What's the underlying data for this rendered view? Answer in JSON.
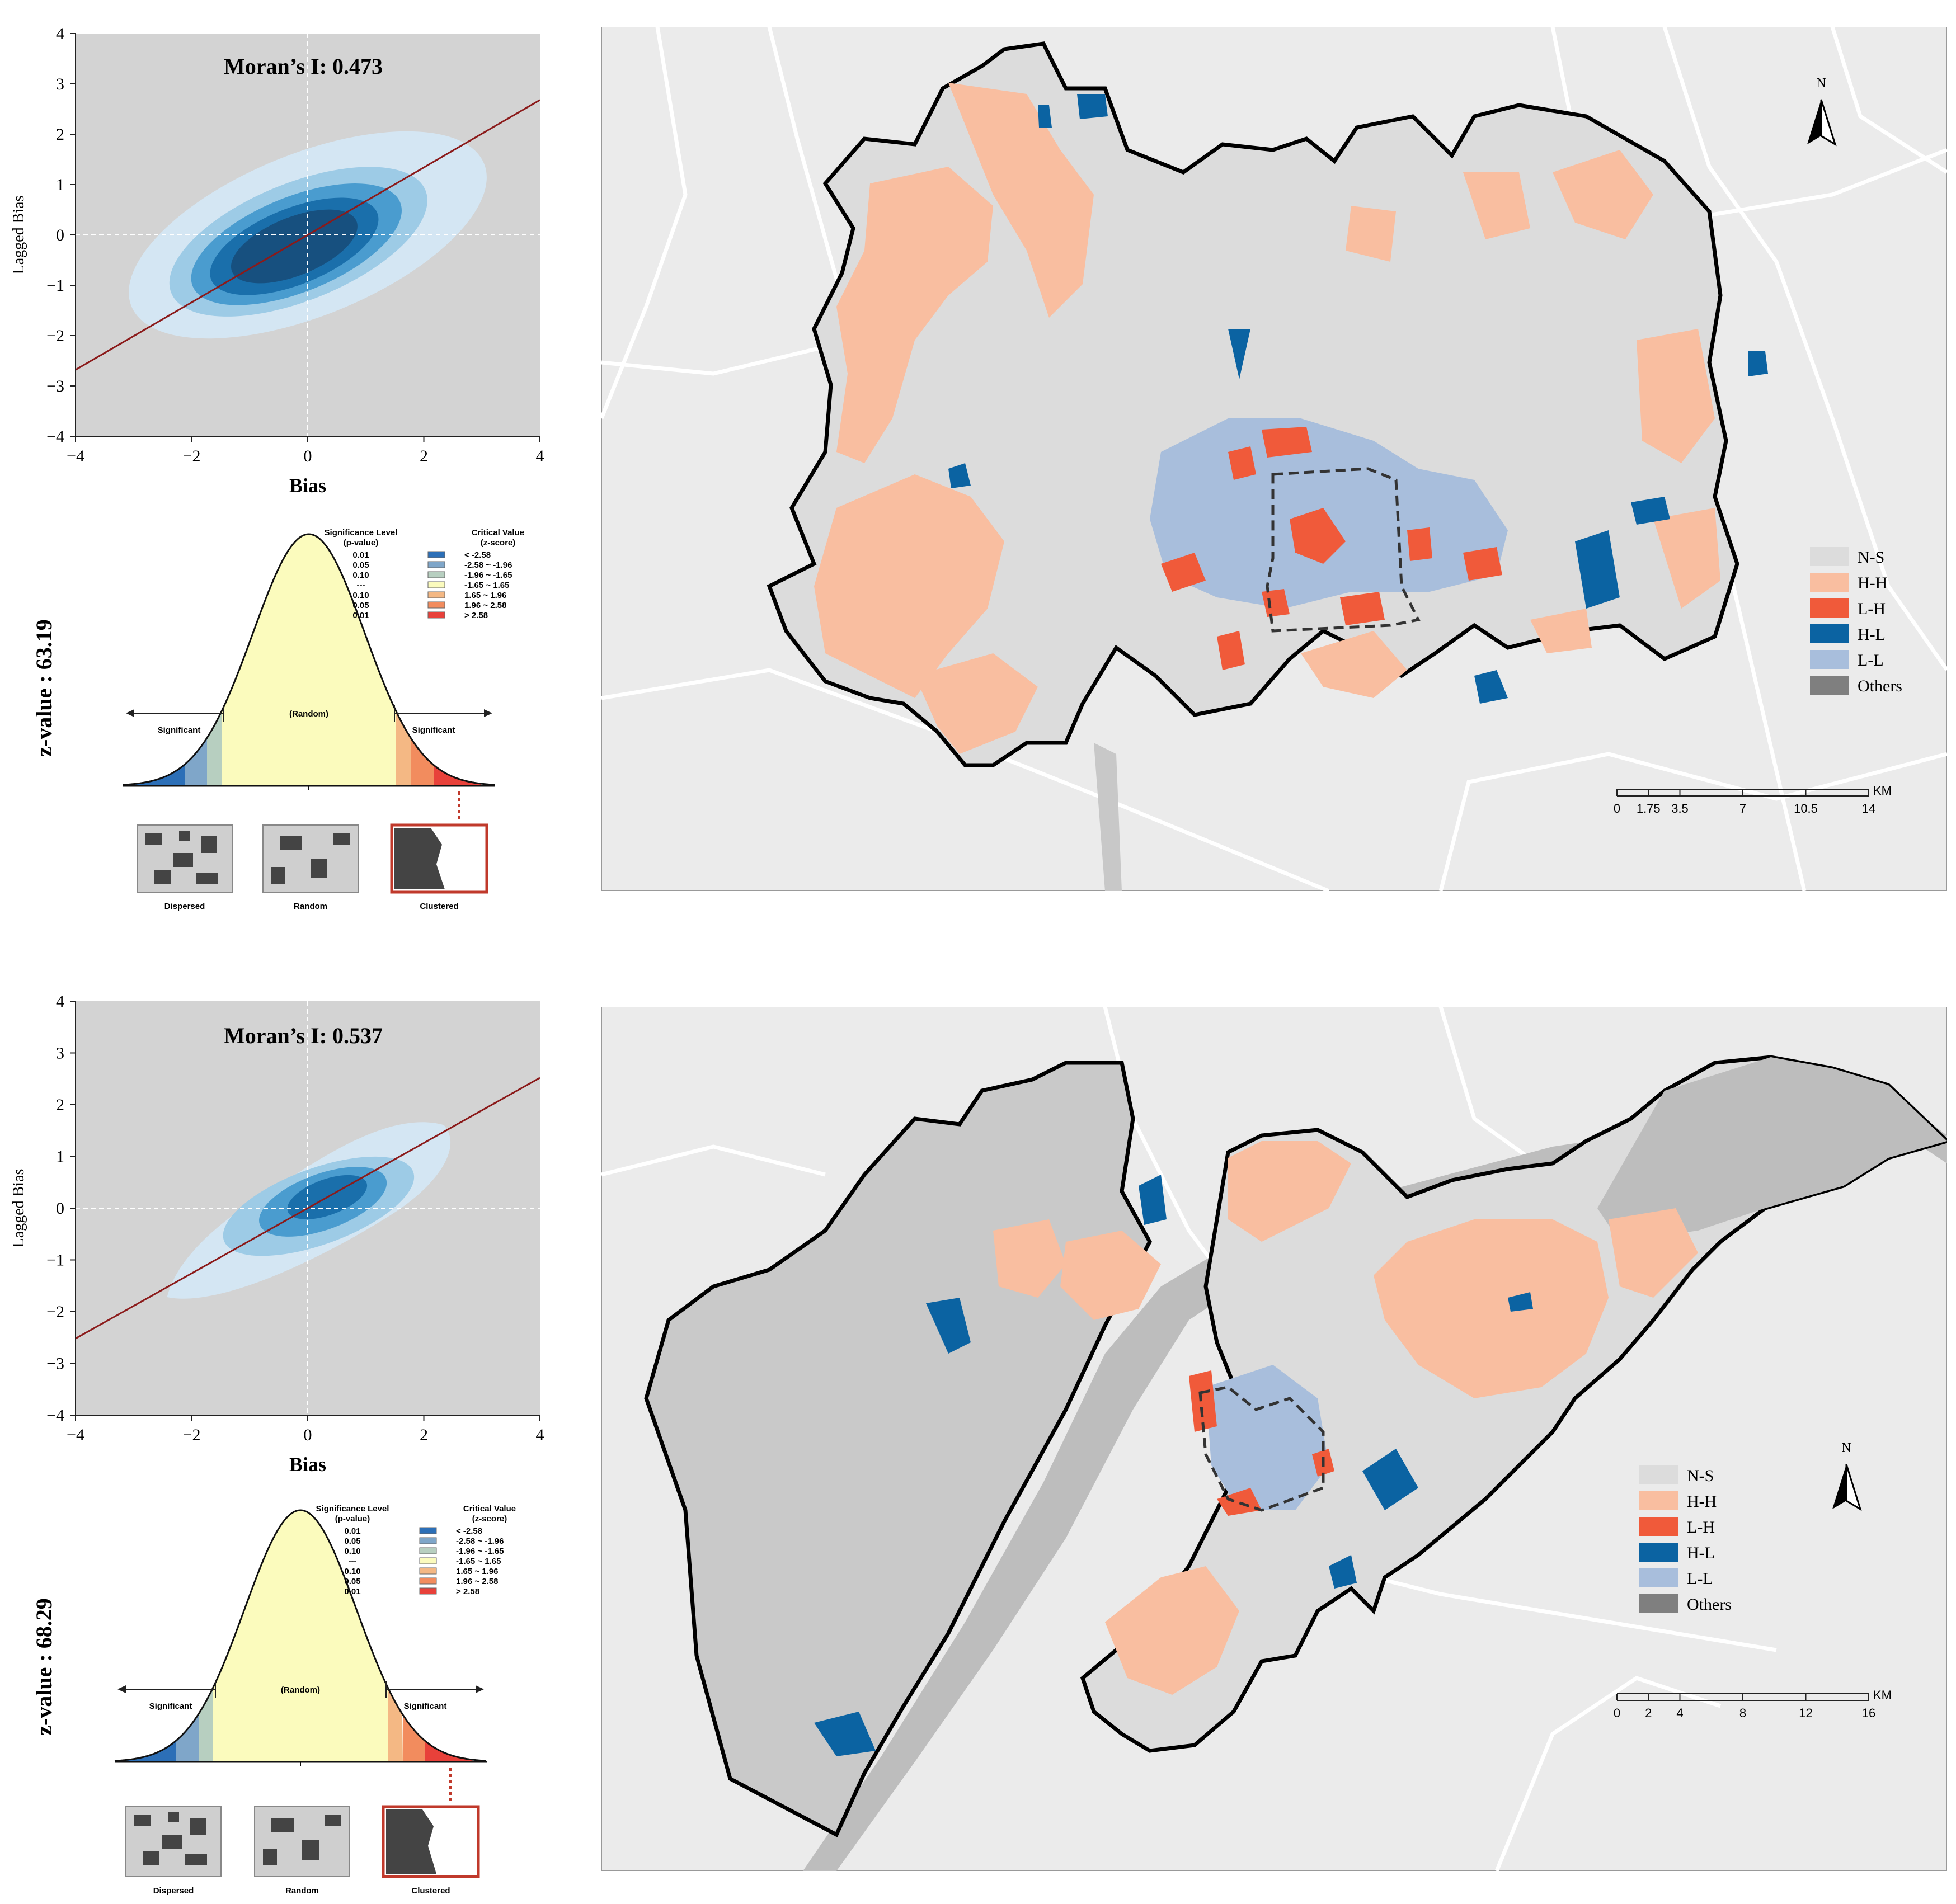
{
  "colors": {
    "plot_bg": "#d3d3d3",
    "regression": "#8b1a1a",
    "kde_levels": [
      "#d4e6f3",
      "#9dcbe6",
      "#4a9ccf",
      "#1a6fab",
      "#17507f"
    ],
    "map_bg": "#ebebeb",
    "road": "#ffffff",
    "river": "#b8b8b8",
    "NS": "#dcdcdc",
    "HH": "#f9bea0",
    "LH": "#f05a3a",
    "HL": "#0b63a2",
    "LL": "#a8bedc",
    "Others": "#7f7f7f",
    "bell_fill": "#fbfbbd",
    "tail_colors": [
      "#2c6fb7",
      "#7fa6c9",
      "#b7cfc0",
      "#f4b884",
      "#f28c5e",
      "#e8413a"
    ]
  },
  "panels": [
    {
      "scatter": {
        "title": "Moran’s I: 0.473",
        "xlabel": "Bias",
        "ylabel": "Lagged Bias",
        "xticks": [
          "−4",
          "−2",
          "0",
          "2",
          "4"
        ],
        "yticks": [
          "4",
          "3",
          "2",
          "1",
          "0",
          "−1",
          "−2",
          "−3",
          "−4"
        ],
        "xlim": [
          -4,
          4
        ],
        "ylim": [
          -4,
          4
        ],
        "slope": 0.67
      },
      "zvalue": "z-value : 63.19",
      "map": {
        "north": "N",
        "legend": [
          "N-S",
          "H-H",
          "L-H",
          "H-L",
          "L-L",
          "Others"
        ],
        "scale_ticks": [
          "0",
          "1.75",
          "3.5",
          "7",
          "10.5",
          "14"
        ],
        "scale_unit": "KM"
      }
    },
    {
      "scatter": {
        "title": "Moran’s I: 0.537",
        "xlabel": "Bias",
        "ylabel": "Lagged Bias",
        "xticks": [
          "−4",
          "−2",
          "0",
          "2",
          "4"
        ],
        "yticks": [
          "4",
          "3",
          "2",
          "1",
          "0",
          "−1",
          "−2",
          "−3",
          "−4"
        ],
        "xlim": [
          -4,
          4
        ],
        "ylim": [
          -4,
          4
        ],
        "slope": 0.63
      },
      "zvalue": "z-value : 68.29",
      "map": {
        "north": "N",
        "legend": [
          "N-S",
          "H-H",
          "L-H",
          "H-L",
          "L-L",
          "Others"
        ],
        "scale_ticks": [
          "0",
          "2",
          "4",
          "8",
          "12",
          "16"
        ],
        "scale_unit": "KM"
      }
    }
  ],
  "normal": {
    "sig_header": "Significance Level",
    "sig_sub": "(p-value)",
    "crit_header": "Critical Value",
    "crit_sub": "(z-score)",
    "rows": [
      {
        "p": "0.01",
        "z": "< -2.58"
      },
      {
        "p": "0.05",
        "z": "-2.58 ~ -1.96"
      },
      {
        "p": "0.10",
        "z": "-1.96 ~ -1.65"
      },
      {
        "p": "---",
        "z": "-1.65 ~ 1.65"
      },
      {
        "p": "0.10",
        "z": "1.65 ~ 1.96"
      },
      {
        "p": "0.05",
        "z": "1.96 ~ 2.58"
      },
      {
        "p": "0.01",
        "z": "> 2.58"
      }
    ],
    "left_label": "Significant",
    "center_label": "(Random)",
    "right_label": "Significant",
    "patterns": [
      "Dispersed",
      "Random",
      "Clustered"
    ]
  }
}
